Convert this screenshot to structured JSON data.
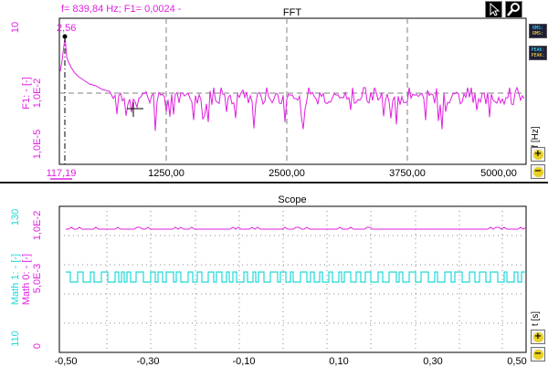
{
  "fft": {
    "title": "FFT",
    "readout": "f= 839,84 Hz; F1= 0,0024 -",
    "cursor_value": "2,56",
    "cursor_x": "117,19",
    "y_axis_label": "F1: - [-]",
    "y_ticks": [
      "10",
      "1,0E-2",
      "1,0E-5"
    ],
    "x_unit": "f [Hz]",
    "x_ticks": [
      "1250,00",
      "2500,00",
      "3750,00",
      "5000,00"
    ],
    "meas_buttons": [
      {
        "top": "RMS:",
        "bottom": "RMS:"
      },
      {
        "top": "PEAK:",
        "bottom": "PEAK:"
      }
    ],
    "zoom_in_icon": "+",
    "zoom_out_icon": "−",
    "trace_color": "#e020e0"
  },
  "scope": {
    "title": "Scope",
    "y1_label": "Math 1: - [-]",
    "y1_ticks": [
      "130",
      "110"
    ],
    "y2_label": "Math 0: - [-]",
    "y2_ticks": [
      "1,0E-2",
      "5,0E-3",
      "0"
    ],
    "x_unit": "t [s]",
    "x_ticks": [
      "-0,50",
      "-0,30",
      "-0,10",
      "0,10",
      "0,30",
      "0,50"
    ],
    "zoom_in_icon": "+",
    "zoom_out_icon": "−",
    "magenta_color": "#e020e0",
    "cyan_color": "#20d8d8"
  }
}
